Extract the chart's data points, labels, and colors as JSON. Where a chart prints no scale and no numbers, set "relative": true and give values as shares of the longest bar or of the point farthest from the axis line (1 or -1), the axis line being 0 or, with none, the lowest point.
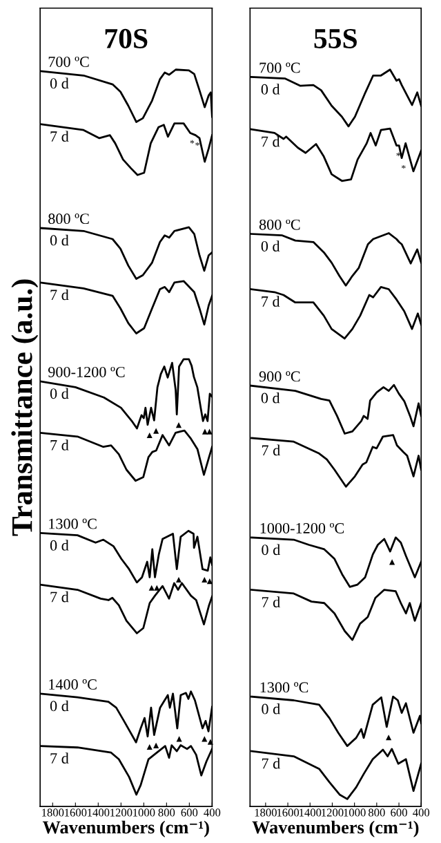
{
  "chart_data": [
    {
      "type": "line",
      "relative": true,
      "title": "70S",
      "xlabel": "Wavenumbers (cm⁻¹)",
      "ylabel": "Transmittance (a.u.)",
      "xlim": [
        1910,
        400
      ],
      "xticks": [
        1800,
        1600,
        1400,
        1200,
        1000,
        800,
        600,
        400
      ],
      "tick_labels": "x",
      "series": [
        {
          "name": "0 d",
          "color": "#000000",
          "x": [
            1910,
            1529,
            1274,
            1205,
            1136,
            1066,
            1008,
            927,
            858,
            816,
            777,
            719,
            604,
            557,
            511,
            465,
            430,
            412,
            400
          ],
          "values": [
            0.998,
            0.992,
            0.98,
            0.97,
            0.951,
            0.929,
            0.934,
            0.958,
            0.987,
            0.996,
            0.993,
            1.0,
            0.999,
            0.994,
            0.972,
            0.949,
            0.965,
            0.969,
            0.936
          ]
        },
        {
          "name": "7 d",
          "color": "#000000",
          "x": [
            1910,
            1529,
            1390,
            1297,
            1251,
            1182,
            1112,
            1055,
            997,
            939,
            870,
            824,
            788,
            731,
            650,
            592,
            546,
            511,
            465,
            430,
            400
          ],
          "values": [
            0.926,
            0.918,
            0.907,
            0.911,
            0.9,
            0.878,
            0.866,
            0.857,
            0.86,
            0.9,
            0.922,
            0.925,
            0.909,
            0.927,
            0.927,
            0.914,
            0.911,
            0.907,
            0.875,
            0.893,
            0.911
          ]
        },
        {
          "name": "0 d",
          "color": "#000000",
          "x": [
            1910,
            1529,
            1274,
            1205,
            1136,
            1066,
            1008,
            927,
            858,
            816,
            777,
            731,
            604,
            557,
            511,
            469,
            430,
            400
          ],
          "values": [
            0.785,
            0.781,
            0.77,
            0.757,
            0.734,
            0.716,
            0.721,
            0.738,
            0.766,
            0.775,
            0.772,
            0.781,
            0.786,
            0.777,
            0.748,
            0.727,
            0.748,
            0.752
          ]
        },
        {
          "name": "7 d",
          "color": "#000000",
          "x": [
            1910,
            1529,
            1274,
            1205,
            1136,
            1066,
            997,
            927,
            858,
            816,
            777,
            731,
            650,
            557,
            511,
            469,
            430,
            400
          ],
          "values": [
            0.711,
            0.703,
            0.693,
            0.676,
            0.656,
            0.642,
            0.649,
            0.676,
            0.702,
            0.705,
            0.698,
            0.711,
            0.713,
            0.698,
            0.676,
            0.654,
            0.68,
            0.693
          ]
        },
        {
          "name": "0 d",
          "color": "#000000",
          "x": [
            1910,
            1600,
            1350,
            1200,
            1100,
            1060,
            1020,
            1000,
            985,
            966,
            936,
            909,
            880,
            850,
            820,
            790,
            751,
            720,
            710,
            690,
            650,
            604,
            580,
            560,
            530,
            500,
            480,
            460,
            440,
            420,
            400
          ],
          "values": [
            0.577,
            0.569,
            0.555,
            0.541,
            0.522,
            0.513,
            0.531,
            0.527,
            0.541,
            0.518,
            0.541,
            0.524,
            0.569,
            0.587,
            0.597,
            0.582,
            0.602,
            0.565,
            0.532,
            0.597,
            0.607,
            0.607,
            0.598,
            0.583,
            0.569,
            0.541,
            0.523,
            0.532,
            0.523,
            0.56,
            0.556
          ]
        },
        {
          "name": "7 d",
          "color": "#000000",
          "x": [
            1910,
            1582,
            1355,
            1287,
            1219,
            1152,
            1072,
            1004,
            959,
            925,
            891,
            835,
            778,
            721,
            676,
            643,
            586,
            529,
            472,
            427,
            400
          ],
          "values": [
            0.507,
            0.502,
            0.488,
            0.49,
            0.478,
            0.457,
            0.442,
            0.447,
            0.474,
            0.481,
            0.483,
            0.504,
            0.49,
            0.507,
            0.509,
            0.51,
            0.499,
            0.485,
            0.45,
            0.474,
            0.488
          ]
        },
        {
          "name": "0 d",
          "color": "#000000",
          "x": [
            1910,
            1582,
            1423,
            1355,
            1265,
            1197,
            1129,
            1061,
            1016,
            970,
            948,
            925,
            902,
            868,
            835,
            744,
            710,
            676,
            608,
            563,
            559,
            529,
            484,
            438,
            416,
            400
          ],
          "values": [
            0.371,
            0.368,
            0.358,
            0.362,
            0.353,
            0.336,
            0.322,
            0.304,
            0.311,
            0.332,
            0.311,
            0.349,
            0.311,
            0.342,
            0.363,
            0.37,
            0.322,
            0.366,
            0.374,
            0.37,
            0.351,
            0.366,
            0.322,
            0.32,
            0.338,
            0.328
          ]
        },
        {
          "name": "7 d",
          "color": "#000000",
          "x": [
            1910,
            1582,
            1378,
            1310,
            1276,
            1219,
            1152,
            1061,
            1004,
            948,
            902,
            835,
            778,
            733,
            699,
            665,
            586,
            540,
            472,
            427,
            400
          ],
          "values": [
            0.301,
            0.294,
            0.282,
            0.28,
            0.283,
            0.273,
            0.252,
            0.235,
            0.242,
            0.276,
            0.286,
            0.299,
            0.282,
            0.303,
            0.294,
            0.303,
            0.286,
            0.28,
            0.247,
            0.273,
            0.285
          ]
        },
        {
          "name": "0 d",
          "color": "#000000",
          "x": [
            1910,
            1582,
            1310,
            1242,
            1174,
            1068,
            1027,
            993,
            966,
            936,
            909,
            857,
            789,
            771,
            744,
            706,
            676,
            630,
            608,
            586,
            551,
            484,
            457,
            432,
            400
          ],
          "values": [
            0.153,
            0.148,
            0.142,
            0.134,
            0.116,
            0.087,
            0.106,
            0.12,
            0.095,
            0.134,
            0.097,
            0.134,
            0.151,
            0.134,
            0.153,
            0.106,
            0.151,
            0.154,
            0.146,
            0.156,
            0.144,
            0.106,
            0.116,
            0.102,
            0.135
          ]
        },
        {
          "name": "7 d",
          "color": "#000000",
          "x": [
            1910,
            1582,
            1287,
            1219,
            1129,
            1065,
            1027,
            959,
            902,
            812,
            778,
            755,
            710,
            676,
            620,
            586,
            540,
            495,
            450,
            400
          ],
          "values": [
            0.082,
            0.08,
            0.073,
            0.064,
            0.04,
            0.016,
            0.029,
            0.064,
            0.071,
            0.082,
            0.066,
            0.083,
            0.075,
            0.083,
            0.078,
            0.082,
            0.07,
            0.042,
            0.061,
            0.078
          ]
        }
      ],
      "annotations": [
        "700 ºC",
        "800 ºC",
        "900-1200 ºC",
        "1300 ºC",
        "1400 ºC",
        {
          "text": "*",
          "x": 592,
          "y": 0.914
        },
        {
          "text": "*",
          "x": 546,
          "y": 0.911
        },
        {
          "text": "▲",
          "x": 966,
          "y": 0.518
        },
        {
          "text": "▲",
          "x": 909,
          "y": 0.524
        },
        {
          "text": "▲",
          "x": 710,
          "y": 0.532
        },
        {
          "text": "▲",
          "x": 480,
          "y": 0.523
        },
        {
          "text": "▲",
          "x": 440,
          "y": 0.523
        },
        {
          "text": "▲",
          "x": 948,
          "y": 0.311
        },
        {
          "text": "▲",
          "x": 902,
          "y": 0.311
        },
        {
          "text": "▲",
          "x": 710,
          "y": 0.322
        },
        {
          "text": "▲",
          "x": 484,
          "y": 0.322
        },
        {
          "text": "▲",
          "x": 438,
          "y": 0.32
        },
        {
          "text": "▲",
          "x": 966,
          "y": 0.095
        },
        {
          "text": "▲",
          "x": 909,
          "y": 0.097
        },
        {
          "text": "▲",
          "x": 706,
          "y": 0.106
        },
        {
          "text": "▲",
          "x": 484,
          "y": 0.106
        },
        {
          "text": "▲",
          "x": 432,
          "y": 0.102
        }
      ]
    },
    {
      "type": "line",
      "relative": true,
      "title": "55S",
      "xlabel": "Wavenumbers (cm⁻¹)",
      "xlim": [
        1940,
        400
      ],
      "xticks": [
        1800,
        1600,
        1400,
        1200,
        1000,
        800,
        600,
        400
      ],
      "tick_labels": "x",
      "series": [
        {
          "name": "0 d",
          "color": "#000000",
          "x": [
            1930,
            1627,
            1487,
            1370,
            1300,
            1206,
            1113,
            1054,
            996,
            902,
            832,
            762,
            680,
            622,
            599,
            575,
            482,
            435,
            400
          ],
          "values": [
            0.99,
            0.988,
            0.978,
            0.979,
            0.972,
            0.951,
            0.936,
            0.923,
            0.936,
            0.969,
            0.992,
            0.992,
            1.0,
            0.985,
            0.987,
            0.979,
            0.952,
            0.969,
            0.951
          ]
        },
        {
          "name": "7 d",
          "color": "#000000",
          "x": [
            1930,
            1720,
            1638,
            1615,
            1510,
            1440,
            1346,
            1276,
            1206,
            1113,
            1031,
            972,
            890,
            855,
            809,
            762,
            680,
            622,
            599,
            575,
            540,
            470,
            400
          ],
          "values": [
            0.919,
            0.914,
            0.906,
            0.909,
            0.894,
            0.887,
            0.899,
            0.882,
            0.858,
            0.849,
            0.851,
            0.878,
            0.9,
            0.914,
            0.897,
            0.918,
            0.92,
            0.897,
            0.897,
            0.88,
            0.9,
            0.862,
            0.89
          ]
        },
        {
          "name": "0 d",
          "color": "#000000",
          "x": [
            1930,
            1650,
            1533,
            1370,
            1276,
            1206,
            1136,
            1078,
            1019,
            961,
            879,
            832,
            692,
            622,
            599,
            575,
            494,
            435,
            400
          ],
          "values": [
            0.777,
            0.775,
            0.768,
            0.766,
            0.752,
            0.738,
            0.72,
            0.707,
            0.72,
            0.731,
            0.763,
            0.77,
            0.778,
            0.77,
            0.766,
            0.763,
            0.737,
            0.756,
            0.738
          ]
        },
        {
          "name": "7 d",
          "color": "#000000",
          "x": [
            1930,
            1720,
            1638,
            1533,
            1370,
            1276,
            1206,
            1089,
            1019,
            949,
            867,
            832,
            762,
            692,
            622,
            552,
            482,
            430,
            400
          ],
          "values": [
            0.702,
            0.698,
            0.694,
            0.684,
            0.684,
            0.666,
            0.648,
            0.635,
            0.648,
            0.666,
            0.694,
            0.691,
            0.705,
            0.702,
            0.688,
            0.672,
            0.648,
            0.669,
            0.654
          ]
        },
        {
          "name": "0 d",
          "color": "#000000",
          "x": [
            1930,
            1533,
            1300,
            1226,
            1157,
            1088,
            1019,
            939,
            917,
            882,
            859,
            800,
            739,
            692,
            645,
            600,
            552,
            500,
            469,
            423,
            400
          ],
          "values": [
            0.571,
            0.564,
            0.553,
            0.551,
            0.53,
            0.506,
            0.509,
            0.523,
            0.53,
            0.526,
            0.551,
            0.562,
            0.569,
            0.564,
            0.572,
            0.56,
            0.55,
            0.53,
            0.516,
            0.547,
            0.53
          ]
        },
        {
          "name": "7 d",
          "color": "#000000",
          "x": [
            1926,
            1547,
            1318,
            1249,
            1180,
            1077,
            996,
            927,
            893,
            836,
            801,
            744,
            652,
            618,
            560,
            526,
            469,
            423,
            400
          ],
          "values": [
            0.5,
            0.495,
            0.479,
            0.471,
            0.457,
            0.434,
            0.448,
            0.464,
            0.467,
            0.488,
            0.486,
            0.502,
            0.504,
            0.49,
            0.481,
            0.476,
            0.448,
            0.476,
            0.457
          ]
        },
        {
          "name": "0 d",
          "color": "#000000",
          "x": [
            1926,
            1547,
            1410,
            1272,
            1180,
            1111,
            1042,
            973,
            904,
            835,
            790,
            732,
            679,
            629,
            583,
            537,
            457,
            400
          ],
          "values": [
            0.365,
            0.362,
            0.355,
            0.349,
            0.336,
            0.315,
            0.298,
            0.301,
            0.311,
            0.342,
            0.355,
            0.363,
            0.346,
            0.365,
            0.358,
            0.34,
            0.311,
            0.332
          ]
        },
        {
          "name": "7 d",
          "color": "#000000",
          "x": [
            1926,
            1547,
            1387,
            1272,
            1180,
            1088,
            1019,
            950,
            881,
            812,
            732,
            629,
            583,
            537,
            503,
            457,
            400
          ],
          "values": [
            0.294,
            0.289,
            0.278,
            0.276,
            0.262,
            0.238,
            0.226,
            0.248,
            0.257,
            0.283,
            0.294,
            0.292,
            0.276,
            0.262,
            0.276,
            0.252,
            0.276
          ]
        },
        {
          "name": "0 d",
          "color": "#000000",
          "x": [
            1926,
            1547,
            1318,
            1226,
            1146,
            1065,
            985,
            939,
            917,
            836,
            759,
            710,
            653,
            610,
            575,
            537,
            469,
            411,
            400
          ],
          "values": [
            0.149,
            0.144,
            0.138,
            0.12,
            0.1,
            0.082,
            0.093,
            0.105,
            0.093,
            0.138,
            0.148,
            0.108,
            0.149,
            0.144,
            0.127,
            0.14,
            0.1,
            0.123,
            0.113
          ]
        },
        {
          "name": "7 d",
          "color": "#000000",
          "x": [
            1926,
            1547,
            1318,
            1226,
            1134,
            1065,
            985,
            917,
            836,
            744,
            702,
            664,
            606,
            537,
            469,
            400
          ],
          "values": [
            0.075,
            0.068,
            0.051,
            0.033,
            0.016,
            0.01,
            0.026,
            0.044,
            0.064,
            0.077,
            0.068,
            0.078,
            0.058,
            0.064,
            0.021,
            0.058
          ]
        }
      ],
      "annotations": [
        "700 ºC",
        "800 ºC",
        "900 ºC",
        "1000-1200 ºC",
        "1300 ºC",
        {
          "text": "*",
          "x": 622,
          "y": 0.897
        },
        {
          "text": "*",
          "x": 575,
          "y": 0.88
        },
        {
          "text": "▲",
          "x": 679,
          "y": 0.346
        },
        {
          "text": "▲",
          "x": 710,
          "y": 0.108
        }
      ]
    }
  ]
}
